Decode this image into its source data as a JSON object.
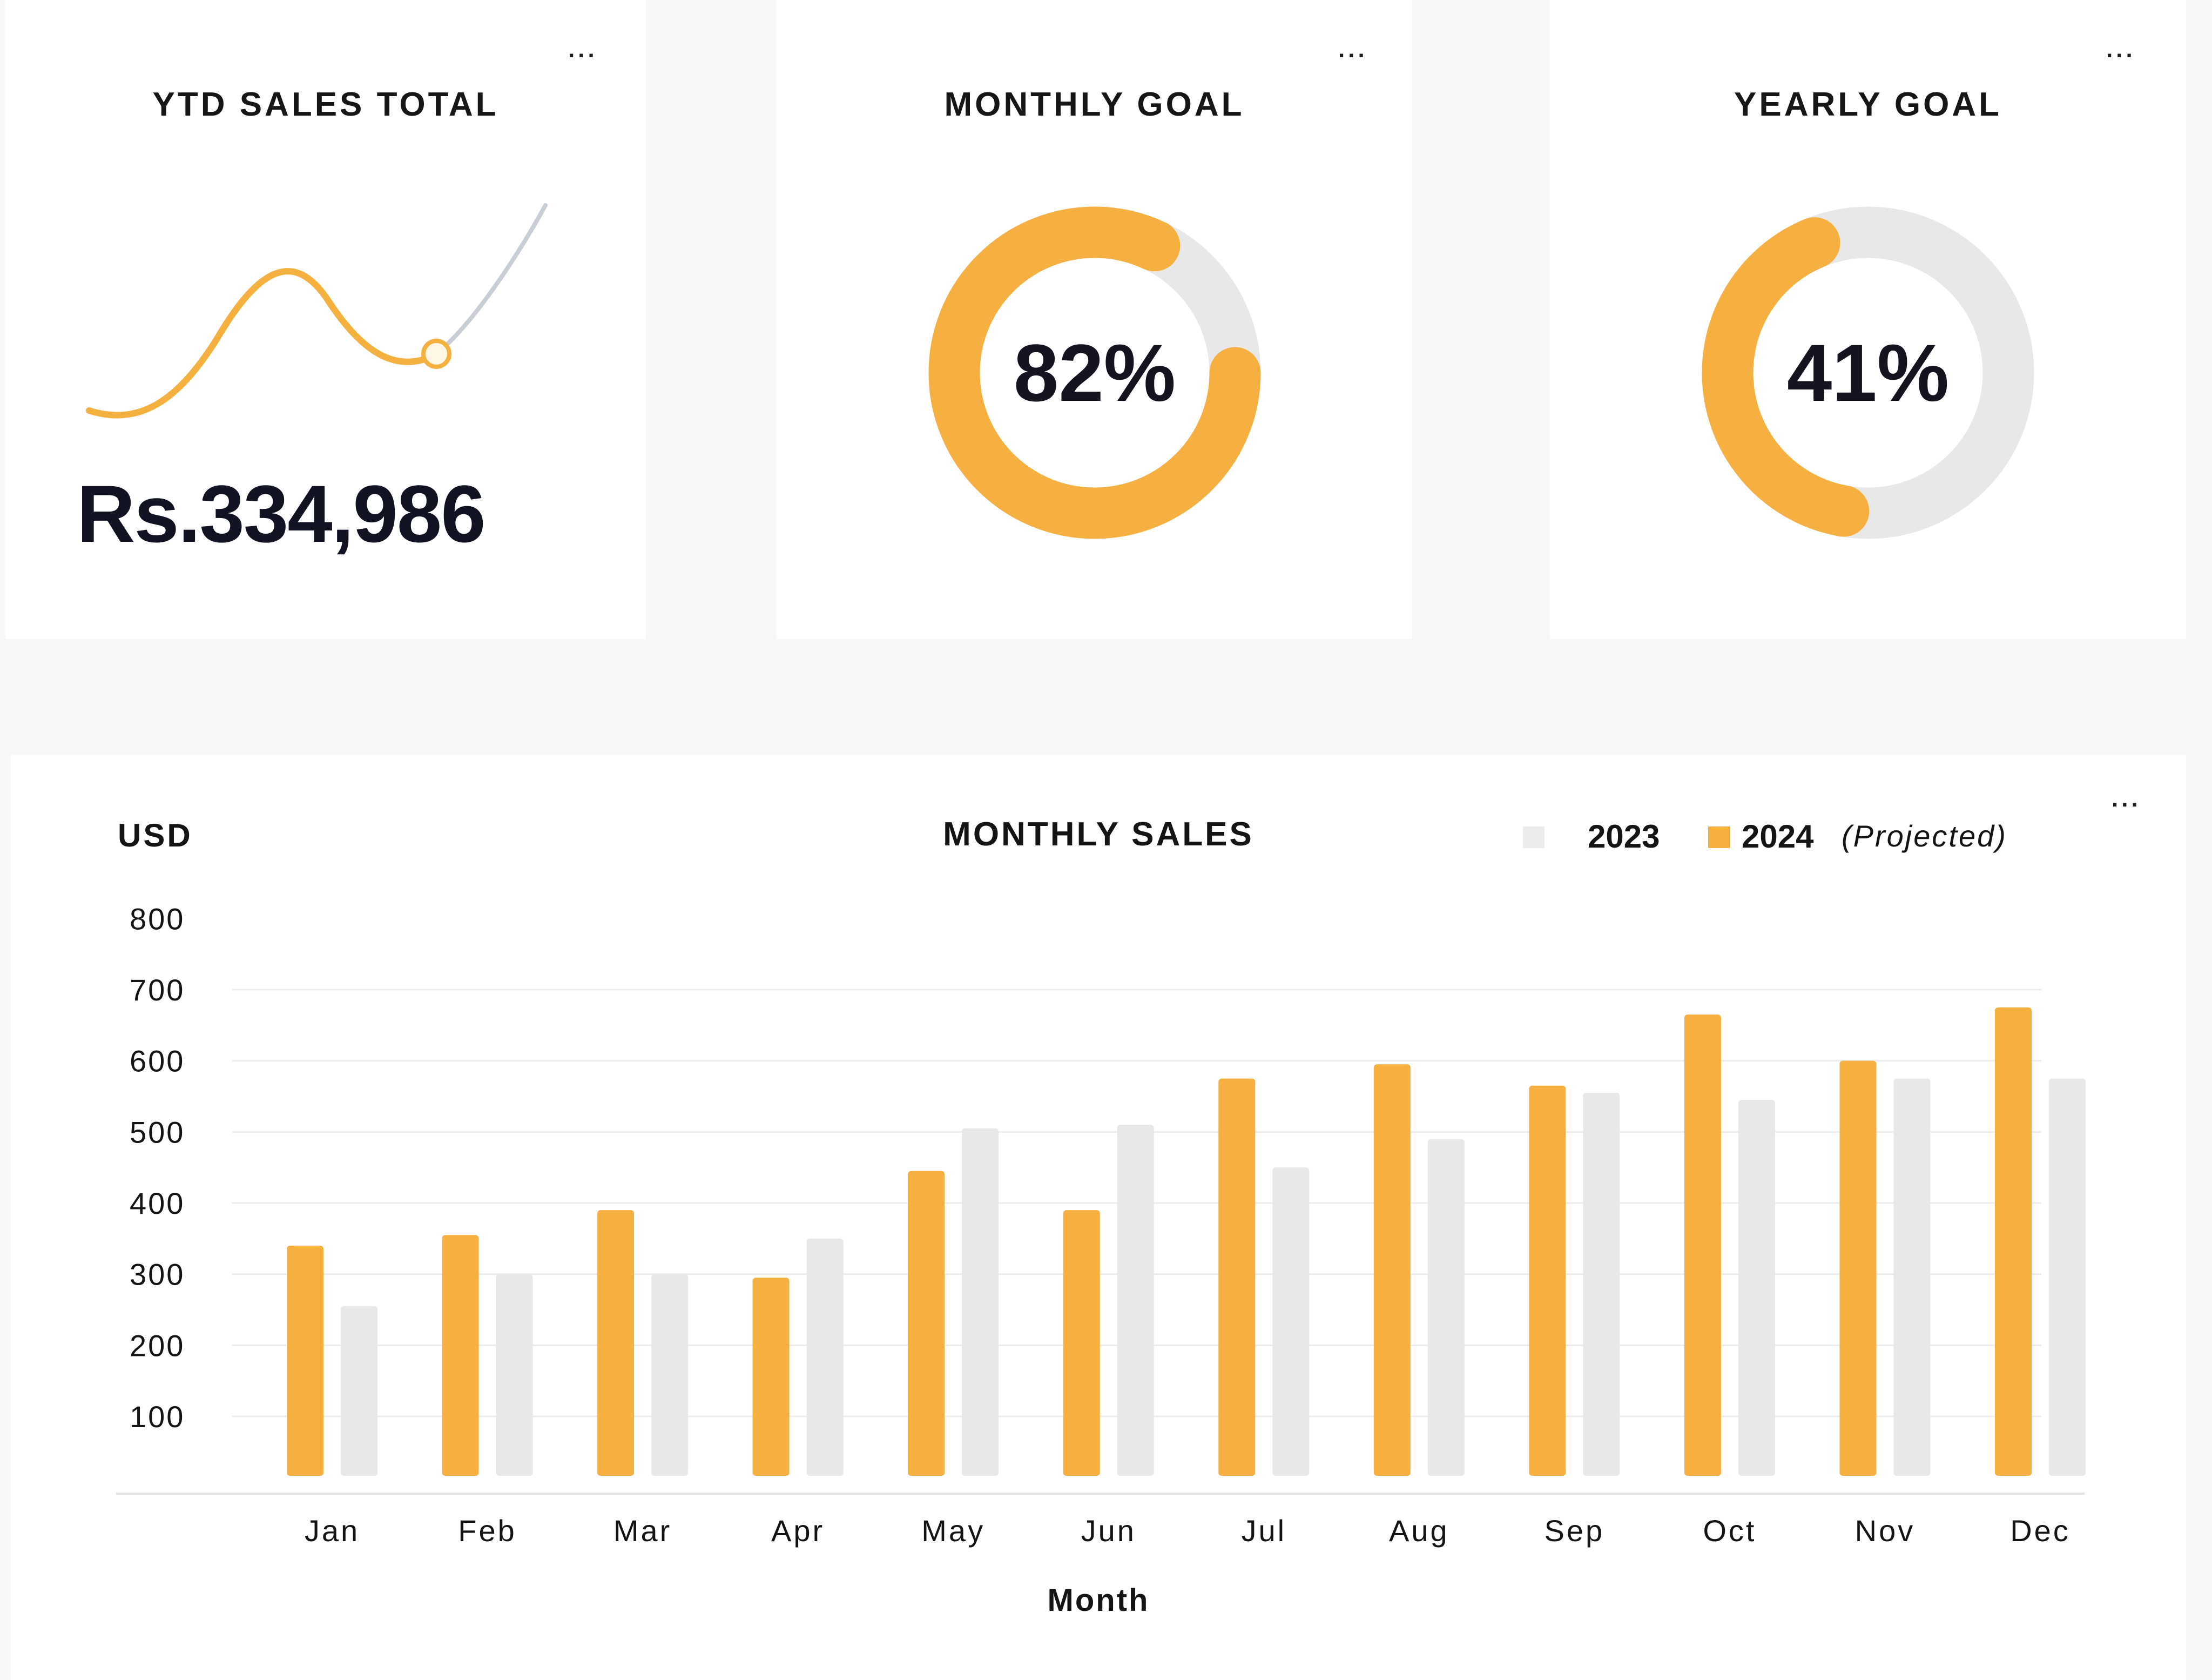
{
  "kpis": {
    "ytd": {
      "title": "YTD SALES TOTAL",
      "value": "Rs.334,986",
      "menu": "..."
    },
    "monthly_goal": {
      "title": "MONTHLY GOAL",
      "percent_label": "82%",
      "percent": 0.82,
      "menu": "..."
    },
    "yearly_goal": {
      "title": "YEARLY GOAL",
      "percent_label": "41%",
      "percent": 0.41,
      "menu": "..."
    }
  },
  "colors": {
    "accent": "#f6b041",
    "muted": "#e8e8e8",
    "text": "#141414"
  },
  "chart_data": {
    "type": "bar",
    "title": "MONTHLY SALES",
    "ylabel": "USD",
    "xlabel": "Month",
    "menu": "...",
    "categories": [
      "Jan",
      "Feb",
      "Mar",
      "Apr",
      "May",
      "Jun",
      "Jul",
      "Aug",
      "Sep",
      "Oct",
      "Nov",
      "Dec"
    ],
    "yticks": [
      "800",
      "700",
      "600",
      "500",
      "400",
      "300",
      "200",
      "100"
    ],
    "ylim": [
      15,
      800
    ],
    "legend": {
      "placement": "top-right",
      "items": [
        "2023",
        "2024",
        "(Projected)"
      ]
    },
    "series": [
      {
        "name": "2024",
        "values": [
          340,
          355,
          390,
          295,
          445,
          390,
          575,
          595,
          565,
          665,
          600,
          675
        ]
      },
      {
        "name": "2023",
        "values": [
          255,
          300,
          300,
          350,
          505,
          510,
          450,
          490,
          555,
          545,
          575,
          575
        ]
      }
    ]
  }
}
